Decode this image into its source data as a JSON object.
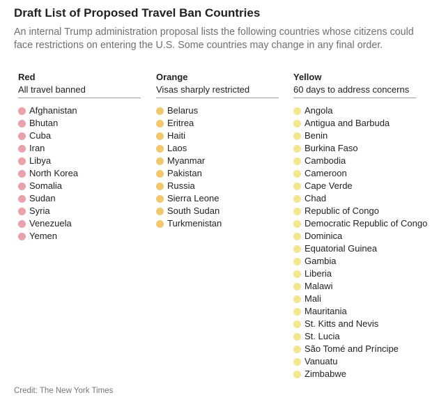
{
  "title": "Draft List of Proposed Travel Ban Countries",
  "subtitle": "An internal Trump administration proposal lists the following countries whose citizens could face restrictions on entering the U.S. Some countries may change in any final order.",
  "columns": [
    {
      "name": "Red",
      "description": "All travel banned",
      "dot_color": "#eba1a9",
      "countries": [
        "Afghanistan",
        "Bhutan",
        "Cuba",
        "Iran",
        "Libya",
        "North Korea",
        "Somalia",
        "Sudan",
        "Syria",
        "Venezuela",
        "Yemen"
      ]
    },
    {
      "name": "Orange",
      "description": "Visas sharply restricted",
      "dot_color": "#f2c86f",
      "countries": [
        "Belarus",
        "Eritrea",
        "Haiti",
        "Laos",
        "Myanmar",
        "Pakistan",
        "Russia",
        "Sierra Leone",
        "South Sudan",
        "Turkmenistan"
      ]
    },
    {
      "name": "Yellow",
      "description": "60 days to address concerns",
      "dot_color": "#f2e78c",
      "countries": [
        "Angola",
        "Antigua and Barbuda",
        "Benin",
        "Burkina Faso",
        "Cambodia",
        "Cameroon",
        "Cape Verde",
        "Chad",
        "Republic of Congo",
        "Democratic Republic of Congo",
        "Dominica",
        "Equatorial Guinea",
        "Gambia",
        "Liberia",
        "Malawi",
        "Mali",
        "Mauritania",
        "St. Kitts and Nevis",
        "St. Lucia",
        "São Tomé and Príncipe",
        "Vanuatu",
        "Zimbabwe"
      ]
    }
  ],
  "credit": "Credit: The New York Times"
}
